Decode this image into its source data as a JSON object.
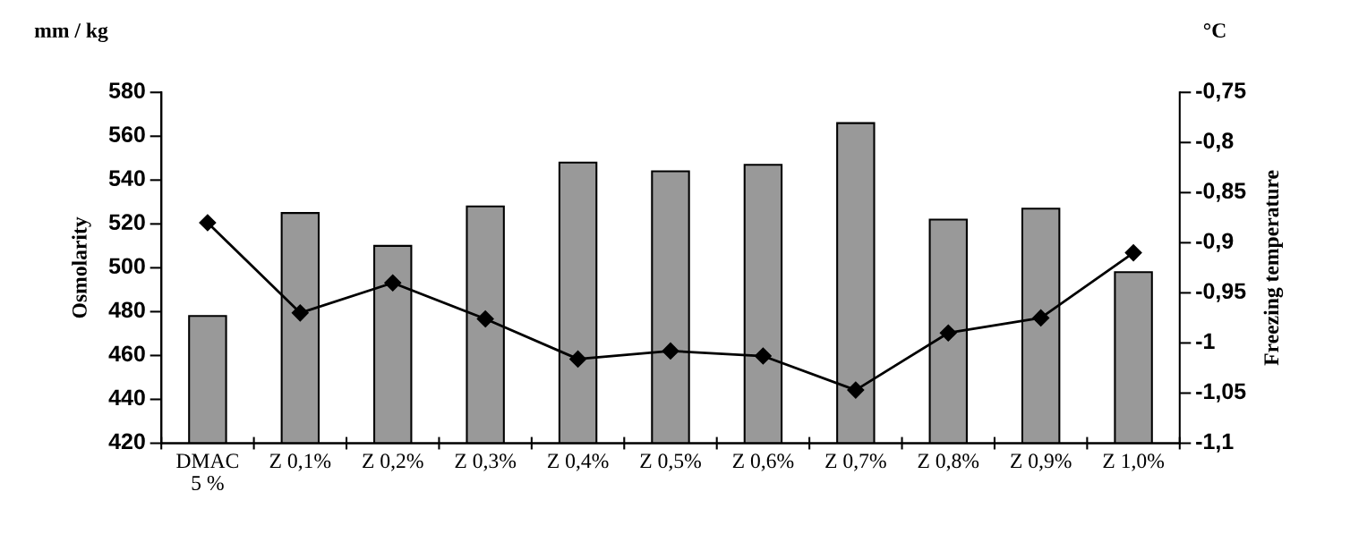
{
  "chart_data": {
    "type": "bar",
    "ylabel": "Osmolarity",
    "y2label": "Freezing temperature",
    "annotations": [
      "mm / kg",
      "°C"
    ],
    "categories": [
      "DMAC\n5 %",
      "Z 0,1%",
      "Z 0,2%",
      "Z 0,3%",
      "Z 0,4%",
      "Z 0,5%",
      "Z 0,6%",
      "Z 0,7%",
      "Z 0,8%",
      "Z 0,9%",
      "Z 1,0%"
    ],
    "series": [
      {
        "color": "#999999",
        "values": [
          478,
          525,
          510,
          528,
          548,
          544,
          547,
          566,
          522,
          527,
          498
        ]
      },
      {
        "type": "line",
        "axis": "y2",
        "color": "#000000",
        "marker": "diamond",
        "line_style": "solid",
        "values": [
          -0.88,
          -0.97,
          -0.94,
          -0.976,
          -1.016,
          -1.008,
          -1.013,
          -1.047,
          -0.99,
          -0.975,
          -0.91
        ]
      }
    ],
    "ylim": [
      420,
      580
    ],
    "yticks": [
      420,
      440,
      460,
      480,
      500,
      520,
      540,
      560,
      580
    ],
    "y2lim": [
      -1.1,
      -0.75
    ],
    "y2ticks": [
      {
        "value": -1.1,
        "label": "-1,1"
      },
      {
        "value": -1.05,
        "label": "-1,05"
      },
      {
        "value": -1.0,
        "label": "-1"
      },
      {
        "value": -0.95,
        "label": "-0,95"
      },
      {
        "value": -0.9,
        "label": "-0,9"
      },
      {
        "value": -0.85,
        "label": "-0,85"
      },
      {
        "value": -0.8,
        "label": "-0,8"
      },
      {
        "value": -0.75,
        "label": "-0,75"
      }
    ],
    "grid": false,
    "legend": false
  }
}
